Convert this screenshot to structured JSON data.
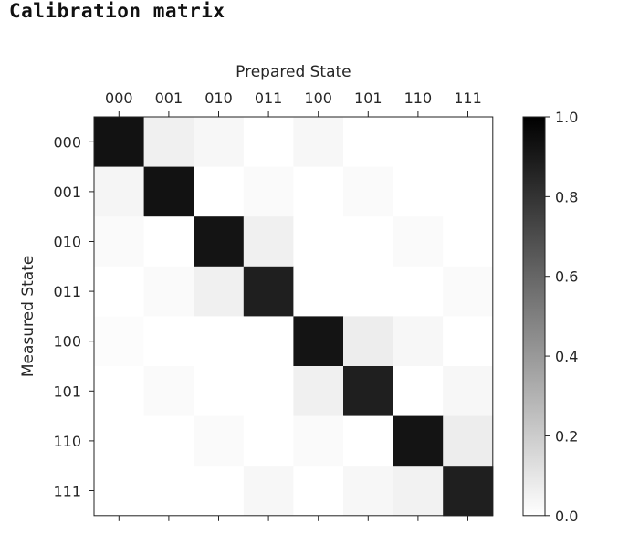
{
  "page": {
    "title": "Calibration matrix"
  },
  "chart_data": {
    "type": "heatmap",
    "title": "",
    "xlabel": "Prepared State",
    "ylabel": "Measured State",
    "x_categories": [
      "000",
      "001",
      "010",
      "011",
      "100",
      "101",
      "110",
      "111"
    ],
    "y_categories": [
      "000",
      "001",
      "010",
      "011",
      "100",
      "101",
      "110",
      "111"
    ],
    "x_axis_position": "top",
    "values": [
      [
        0.93,
        0.06,
        0.03,
        0.0,
        0.03,
        0.0,
        0.0,
        0.0
      ],
      [
        0.04,
        0.93,
        0.0,
        0.02,
        0.0,
        0.02,
        0.0,
        0.0
      ],
      [
        0.02,
        0.0,
        0.92,
        0.06,
        0.0,
        0.0,
        0.02,
        0.0
      ],
      [
        0.0,
        0.02,
        0.06,
        0.88,
        0.0,
        0.0,
        0.0,
        0.02
      ],
      [
        0.01,
        0.0,
        0.0,
        0.0,
        0.92,
        0.07,
        0.03,
        0.0
      ],
      [
        0.0,
        0.02,
        0.0,
        0.0,
        0.06,
        0.88,
        0.0,
        0.03
      ],
      [
        0.0,
        0.0,
        0.02,
        0.0,
        0.02,
        0.0,
        0.92,
        0.07
      ],
      [
        0.0,
        0.0,
        0.0,
        0.03,
        0.0,
        0.03,
        0.05,
        0.88
      ]
    ],
    "colorbar": {
      "min": 0.0,
      "max": 1.0,
      "ticks": [
        0.0,
        0.2,
        0.4,
        0.6,
        0.8,
        1.0
      ],
      "tick_labels": [
        "0.0",
        "0.2",
        "0.4",
        "0.6",
        "0.8",
        "1.0"
      ],
      "colormap": "greys",
      "low_color": "#ffffff",
      "high_color": "#000000"
    },
    "grid": false,
    "legend": "none"
  }
}
